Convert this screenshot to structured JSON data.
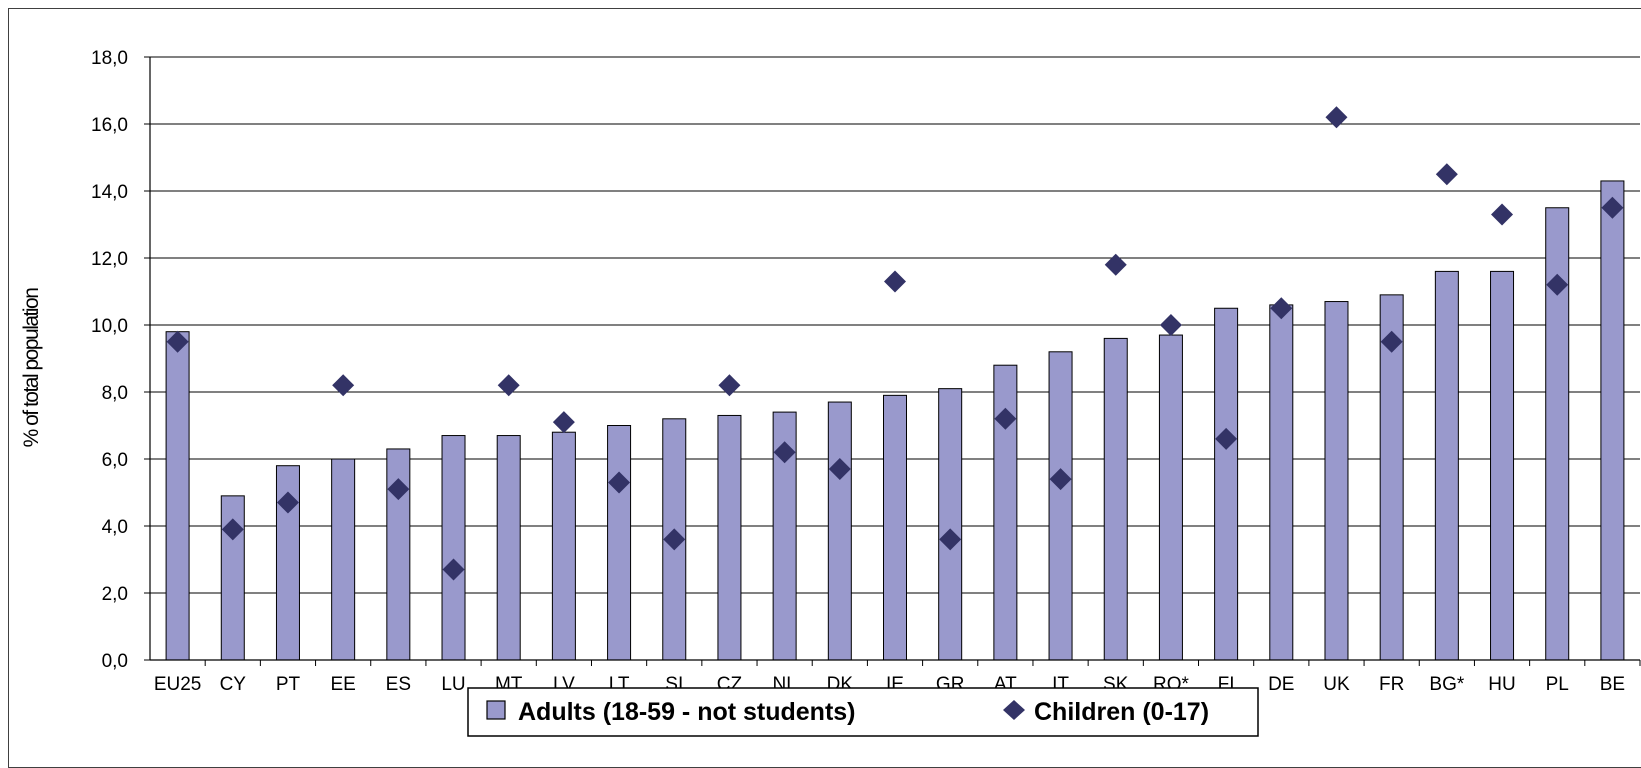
{
  "chart_data": {
    "type": "bar",
    "title": "",
    "xlabel": "",
    "ylabel": "% of total population",
    "ylim": [
      0,
      18
    ],
    "yticks": [
      "0,0",
      "2,0",
      "4,0",
      "6,0",
      "8,0",
      "10,0",
      "12,0",
      "14,0",
      "16,0",
      "18,0"
    ],
    "grid": true,
    "legend_position": "bottom",
    "categories": [
      "EU25",
      "CY",
      "PT",
      "EE",
      "ES",
      "LU",
      "MT",
      "LV",
      "LT",
      "SI",
      "CZ",
      "NL",
      "DK",
      "IE",
      "GR",
      "AT",
      "IT",
      "SK",
      "RO*",
      "FI",
      "DE",
      "UK",
      "FR",
      "BG*",
      "HU",
      "PL",
      "BE"
    ],
    "series": [
      {
        "name": "Adults (18-59 - not students)",
        "kind": "bar",
        "color": "#9999CC",
        "values": [
          9.8,
          4.9,
          5.8,
          6.0,
          6.3,
          6.7,
          6.7,
          6.8,
          7.0,
          7.2,
          7.3,
          7.4,
          7.7,
          7.9,
          8.1,
          8.8,
          9.2,
          9.6,
          9.7,
          10.5,
          10.6,
          10.7,
          10.9,
          11.6,
          11.6,
          13.5,
          14.3
        ]
      },
      {
        "name": "Children (0-17)",
        "kind": "marker",
        "color": "#333366",
        "values": [
          9.5,
          3.9,
          4.7,
          8.2,
          5.1,
          2.7,
          8.2,
          7.1,
          5.3,
          3.6,
          8.2,
          6.2,
          5.7,
          11.3,
          3.6,
          7.2,
          5.4,
          11.8,
          10.0,
          6.6,
          10.5,
          16.2,
          9.5,
          14.5,
          13.3,
          11.2,
          13.5
        ]
      }
    ]
  }
}
